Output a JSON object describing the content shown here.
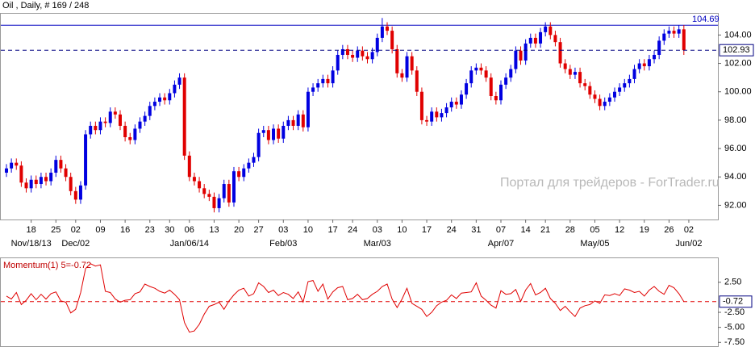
{
  "chart_data": [
    {
      "type": "candlestick",
      "title": "Oil , Daily, # 169 / 248",
      "watermark": "Портал для трейдеров - ForTrader.ru",
      "up_color": "#0000e0",
      "down_color": "#e00000",
      "resistance": 104.69,
      "resistance_color": "#0000c0",
      "ylim": [
        91.0,
        105.5
      ],
      "yticks": [
        {
          "value": 92,
          "label": "92.00"
        },
        {
          "value": 94,
          "label": "94.00"
        },
        {
          "value": 96,
          "label": "96.00"
        },
        {
          "value": 98,
          "label": "98.00"
        },
        {
          "value": 100,
          "label": "100.00"
        },
        {
          "value": 102,
          "label": "102.00"
        },
        {
          "value": 104,
          "label": "104.00"
        }
      ],
      "categories": [
        null,
        null,
        null,
        null,
        null,
        "18",
        null,
        null,
        null,
        null,
        "25",
        null,
        null,
        null,
        "02",
        null,
        null,
        null,
        null,
        "09",
        null,
        null,
        null,
        null,
        "16",
        null,
        null,
        null,
        null,
        "23",
        null,
        null,
        null,
        "30",
        null,
        null,
        null,
        "06",
        null,
        null,
        null,
        null,
        "13",
        null,
        null,
        null,
        null,
        "20",
        null,
        null,
        null,
        "27",
        null,
        null,
        null,
        null,
        "03",
        null,
        null,
        null,
        null,
        "10",
        null,
        null,
        null,
        null,
        "17",
        null,
        null,
        null,
        "24",
        null,
        null,
        null,
        null,
        "03",
        null,
        null,
        null,
        null,
        "10",
        null,
        null,
        null,
        null,
        "17",
        null,
        null,
        null,
        null,
        "24",
        null,
        null,
        null,
        null,
        "31",
        null,
        null,
        null,
        null,
        "07",
        null,
        null,
        null,
        null,
        "14",
        null,
        null,
        null,
        "21",
        null,
        null,
        null,
        null,
        "28",
        null,
        null,
        null,
        null,
        "05",
        null,
        null,
        null,
        null,
        "12",
        null,
        null,
        null,
        null,
        "19",
        null,
        null,
        null,
        null,
        "26",
        null,
        null,
        null,
        "02"
      ],
      "period_labels": [
        null,
        null,
        null,
        null,
        null,
        "Nov/18/13",
        null,
        null,
        null,
        null,
        null,
        null,
        null,
        null,
        "Dec/02",
        null,
        null,
        null,
        null,
        null,
        null,
        null,
        null,
        null,
        null,
        null,
        null,
        null,
        null,
        null,
        null,
        null,
        null,
        null,
        null,
        null,
        null,
        "Jan/06/14",
        null,
        null,
        null,
        null,
        null,
        null,
        null,
        null,
        null,
        null,
        null,
        null,
        null,
        null,
        null,
        null,
        null,
        null,
        "Feb/03",
        null,
        null,
        null,
        null,
        null,
        null,
        null,
        null,
        null,
        null,
        null,
        null,
        null,
        null,
        null,
        null,
        null,
        null,
        "Mar/03",
        null,
        null,
        null,
        null,
        null,
        null,
        null,
        null,
        null,
        null,
        null,
        null,
        null,
        null,
        null,
        null,
        null,
        null,
        null,
        null,
        null,
        null,
        null,
        null,
        "Apr/07",
        null,
        null,
        null,
        null,
        null,
        null,
        null,
        null,
        null,
        null,
        null,
        null,
        null,
        null,
        null,
        null,
        null,
        null,
        "May/05",
        null,
        null,
        null,
        null,
        null,
        null,
        null,
        null,
        null,
        null,
        null,
        null,
        null,
        null,
        null,
        null,
        null,
        null,
        "Jun/02"
      ],
      "candles": [
        [
          94.3,
          94.9,
          94.0,
          94.6
        ],
        [
          94.6,
          95.3,
          94.3,
          95.0
        ],
        [
          95.0,
          95.3,
          94.5,
          94.8
        ],
        [
          94.8,
          95.1,
          93.3,
          93.6
        ],
        [
          93.6,
          93.9,
          92.9,
          93.2
        ],
        [
          93.2,
          94.1,
          92.9,
          93.8
        ],
        [
          93.8,
          94.1,
          93.2,
          93.5
        ],
        [
          93.5,
          94.3,
          93.2,
          94.0
        ],
        [
          94.0,
          94.3,
          93.4,
          93.7
        ],
        [
          93.7,
          94.6,
          93.4,
          94.3
        ],
        [
          94.3,
          95.5,
          94.0,
          95.2
        ],
        [
          95.2,
          95.5,
          94.3,
          94.6
        ],
        [
          94.6,
          94.9,
          93.7,
          94.0
        ],
        [
          94.0,
          94.3,
          92.7,
          93.0
        ],
        [
          93.0,
          93.3,
          92.1,
          92.4
        ],
        [
          92.4,
          93.7,
          92.1,
          93.4
        ],
        [
          93.4,
          97.3,
          93.1,
          97.0
        ],
        [
          97.0,
          97.9,
          96.7,
          97.6
        ],
        [
          97.6,
          97.9,
          97.0,
          97.3
        ],
        [
          97.3,
          98.2,
          97.0,
          97.9
        ],
        [
          97.9,
          98.2,
          97.5,
          97.8
        ],
        [
          97.8,
          98.9,
          97.5,
          98.6
        ],
        [
          98.6,
          98.9,
          98.1,
          98.4
        ],
        [
          98.4,
          98.7,
          97.3,
          97.6
        ],
        [
          97.6,
          97.9,
          96.5,
          96.8
        ],
        [
          96.8,
          97.1,
          96.3,
          96.6
        ],
        [
          96.6,
          97.7,
          96.3,
          97.4
        ],
        [
          97.4,
          98.2,
          97.1,
          97.9
        ],
        [
          97.9,
          98.6,
          97.6,
          98.3
        ],
        [
          98.3,
          99.3,
          98.0,
          99.0
        ],
        [
          99.0,
          99.6,
          98.7,
          99.3
        ],
        [
          99.3,
          99.9,
          99.0,
          99.6
        ],
        [
          99.6,
          99.9,
          99.1,
          99.4
        ],
        [
          99.4,
          100.2,
          99.1,
          99.9
        ],
        [
          99.9,
          100.8,
          99.6,
          100.5
        ],
        [
          100.5,
          101.3,
          100.2,
          101.0
        ],
        [
          101.0,
          101.3,
          95.2,
          95.5
        ],
        [
          95.5,
          95.8,
          93.7,
          94.0
        ],
        [
          94.0,
          94.3,
          93.4,
          93.7
        ],
        [
          93.7,
          94.0,
          92.9,
          93.2
        ],
        [
          93.2,
          93.5,
          92.5,
          92.8
        ],
        [
          92.8,
          93.1,
          92.3,
          92.6
        ],
        [
          92.6,
          92.9,
          91.5,
          91.8
        ],
        [
          91.8,
          92.8,
          91.5,
          92.5
        ],
        [
          92.5,
          93.8,
          92.2,
          93.5
        ],
        [
          93.5,
          93.8,
          91.9,
          92.2
        ],
        [
          92.2,
          94.7,
          91.9,
          94.4
        ],
        [
          94.4,
          94.7,
          93.7,
          94.0
        ],
        [
          94.0,
          94.9,
          93.7,
          94.6
        ],
        [
          94.6,
          95.3,
          94.3,
          95.0
        ],
        [
          95.0,
          95.7,
          94.7,
          95.4
        ],
        [
          95.4,
          97.4,
          95.1,
          97.1
        ],
        [
          97.1,
          97.6,
          96.8,
          97.3
        ],
        [
          97.3,
          97.6,
          96.3,
          96.6
        ],
        [
          96.6,
          97.7,
          96.3,
          97.4
        ],
        [
          97.4,
          97.7,
          96.4,
          96.7
        ],
        [
          96.7,
          97.9,
          96.4,
          97.6
        ],
        [
          97.6,
          98.3,
          97.3,
          98.0
        ],
        [
          98.0,
          98.3,
          97.3,
          97.6
        ],
        [
          97.6,
          98.7,
          97.3,
          98.4
        ],
        [
          98.4,
          98.7,
          97.2,
          97.5
        ],
        [
          97.5,
          100.3,
          97.2,
          100.0
        ],
        [
          100.0,
          100.6,
          99.7,
          100.3
        ],
        [
          100.3,
          100.9,
          100.0,
          100.6
        ],
        [
          100.6,
          101.2,
          100.3,
          100.9
        ],
        [
          100.9,
          101.2,
          100.3,
          100.6
        ],
        [
          100.6,
          101.8,
          100.3,
          101.5
        ],
        [
          101.5,
          102.9,
          101.2,
          102.6
        ],
        [
          102.6,
          103.3,
          102.3,
          103.0
        ],
        [
          103.0,
          103.3,
          102.3,
          102.6
        ],
        [
          102.6,
          102.9,
          102.1,
          102.4
        ],
        [
          102.4,
          103.2,
          102.1,
          102.9
        ],
        [
          102.9,
          103.2,
          102.2,
          102.5
        ],
        [
          102.5,
          102.8,
          102.0,
          102.3
        ],
        [
          102.3,
          103.1,
          102.0,
          102.8
        ],
        [
          102.8,
          104.1,
          102.5,
          103.8
        ],
        [
          103.8,
          105.2,
          103.5,
          104.6
        ],
        [
          104.6,
          104.9,
          104.0,
          104.3
        ],
        [
          104.3,
          104.6,
          102.7,
          103.0
        ],
        [
          103.0,
          103.3,
          101.0,
          101.3
        ],
        [
          101.3,
          101.6,
          100.7,
          101.0
        ],
        [
          101.0,
          102.8,
          100.7,
          102.5
        ],
        [
          102.5,
          102.8,
          101.2,
          101.5
        ],
        [
          101.5,
          101.8,
          99.7,
          100.0
        ],
        [
          100.0,
          100.3,
          97.7,
          98.0
        ],
        [
          98.0,
          98.3,
          97.6,
          97.9
        ],
        [
          97.9,
          98.9,
          97.6,
          98.6
        ],
        [
          98.6,
          98.9,
          97.9,
          98.2
        ],
        [
          98.2,
          98.8,
          97.9,
          98.5
        ],
        [
          98.5,
          99.2,
          98.2,
          98.9
        ],
        [
          98.9,
          99.6,
          98.6,
          99.3
        ],
        [
          99.3,
          99.6,
          98.8,
          99.1
        ],
        [
          99.1,
          100.1,
          98.8,
          99.8
        ],
        [
          99.8,
          100.9,
          99.5,
          100.6
        ],
        [
          100.6,
          101.8,
          100.3,
          101.5
        ],
        [
          101.5,
          102.0,
          101.2,
          101.7
        ],
        [
          101.7,
          102.0,
          101.2,
          101.5
        ],
        [
          101.5,
          101.8,
          100.7,
          101.0
        ],
        [
          101.0,
          101.3,
          99.4,
          99.7
        ],
        [
          99.7,
          100.0,
          99.1,
          99.4
        ],
        [
          99.4,
          100.8,
          99.1,
          100.5
        ],
        [
          100.5,
          101.3,
          100.2,
          101.0
        ],
        [
          101.0,
          101.9,
          100.7,
          101.6
        ],
        [
          101.6,
          103.2,
          101.3,
          102.9
        ],
        [
          102.9,
          103.2,
          101.9,
          102.2
        ],
        [
          102.2,
          103.7,
          101.9,
          103.4
        ],
        [
          103.4,
          104.1,
          103.1,
          103.8
        ],
        [
          103.8,
          104.1,
          103.1,
          103.4
        ],
        [
          103.4,
          104.5,
          103.1,
          104.2
        ],
        [
          104.2,
          104.9,
          103.9,
          104.6
        ],
        [
          104.6,
          104.9,
          103.7,
          104.0
        ],
        [
          104.0,
          104.3,
          103.2,
          103.5
        ],
        [
          103.5,
          103.8,
          101.7,
          102.0
        ],
        [
          102.0,
          102.3,
          101.3,
          101.6
        ],
        [
          101.6,
          101.9,
          100.9,
          101.2
        ],
        [
          101.2,
          101.7,
          100.9,
          101.4
        ],
        [
          101.4,
          101.7,
          100.3,
          100.6
        ],
        [
          100.6,
          100.9,
          100.1,
          100.4
        ],
        [
          100.4,
          100.7,
          99.5,
          99.8
        ],
        [
          99.8,
          100.1,
          99.2,
          99.5
        ],
        [
          99.5,
          99.8,
          98.7,
          99.0
        ],
        [
          99.0,
          99.6,
          98.7,
          99.3
        ],
        [
          99.3,
          99.9,
          99.0,
          99.6
        ],
        [
          99.6,
          100.3,
          99.3,
          100.0
        ],
        [
          100.0,
          100.6,
          99.7,
          100.3
        ],
        [
          100.3,
          100.9,
          100.0,
          100.6
        ],
        [
          100.6,
          101.2,
          100.3,
          100.9
        ],
        [
          100.9,
          101.9,
          100.6,
          101.6
        ],
        [
          101.6,
          102.3,
          101.3,
          102.0
        ],
        [
          102.0,
          102.3,
          101.5,
          101.8
        ],
        [
          101.8,
          102.6,
          101.5,
          102.3
        ],
        [
          102.3,
          102.9,
          102.0,
          102.6
        ],
        [
          102.6,
          103.9,
          102.3,
          103.6
        ],
        [
          103.6,
          104.4,
          103.3,
          104.1
        ],
        [
          104.1,
          104.6,
          103.8,
          104.3
        ],
        [
          104.3,
          104.6,
          103.8,
          104.1
        ],
        [
          104.1,
          104.7,
          103.8,
          104.4
        ],
        [
          104.4,
          104.7,
          102.6,
          102.93
        ],
        null
      ]
    },
    {
      "type": "line",
      "title": "Momentum(1) 5=-0.72",
      "color": "#e00000",
      "ylim": [
        -8.0,
        6.5
      ],
      "yticks": [
        {
          "value": 2.5,
          "label": "2.50"
        },
        {
          "value": -2.5,
          "label": "-2.50"
        },
        {
          "value": -5,
          "label": "-5.00"
        },
        {
          "value": -7.5,
          "label": "-7.50"
        }
      ],
      "values": [
        0.2,
        -0.3,
        0.8,
        -1.2,
        -0.5,
        0.6,
        -0.4,
        0.5,
        -0.3,
        0.6,
        0.9,
        -0.6,
        -0.8,
        -2.6,
        -2.0,
        0.8,
        4.8,
        5.6,
        5.2,
        5.4,
        1.0,
        0.8,
        -0.3,
        -0.8,
        -0.5,
        -0.4,
        0.6,
        0.9,
        2.2,
        1.8,
        1.5,
        1.0,
        0.7,
        1.2,
        0.5,
        -0.4,
        -4.2,
        -5.8,
        -5.6,
        -4.5,
        -2.8,
        -1.5,
        -1.2,
        -0.8,
        -2.0,
        -0.6,
        0.4,
        1.2,
        1.5,
        0.2,
        0.6,
        2.4,
        1.8,
        0.8,
        1.2,
        0.3,
        0.8,
        0.5,
        -0.2,
        0.9,
        -0.8,
        2.6,
        2.8,
        1.0,
        2.2,
        -0.3,
        0.9,
        1.6,
        1.8,
        -0.4,
        -0.2,
        0.5,
        -0.4,
        -0.2,
        0.5,
        1.0,
        1.8,
        2.2,
        -0.3,
        -1.7,
        -0.3,
        1.5,
        -1.0,
        -1.5,
        -2.0,
        -3.2,
        -2.5,
        -1.4,
        -0.8,
        -0.5,
        0.4,
        -0.2,
        0.7,
        0.8,
        0.9,
        2.4,
        0.2,
        -0.5,
        -1.3,
        -1.8,
        1.1,
        0.5,
        0.6,
        1.3,
        -0.7,
        1.2,
        2.3,
        0.4,
        0.8,
        1.5,
        -0.2,
        -1.0,
        -2.2,
        -1.5,
        -2.4,
        -3.2,
        -1.8,
        -1.4,
        -1.2,
        -0.6,
        -1.0,
        0.4,
        0.3,
        0.6,
        0.3,
        1.4,
        1.2,
        0.8,
        1.0,
        0.2,
        1.2,
        1.8,
        1.0,
        0.5,
        2.0,
        1.6,
        0.6,
        -0.72,
        null
      ]
    }
  ]
}
